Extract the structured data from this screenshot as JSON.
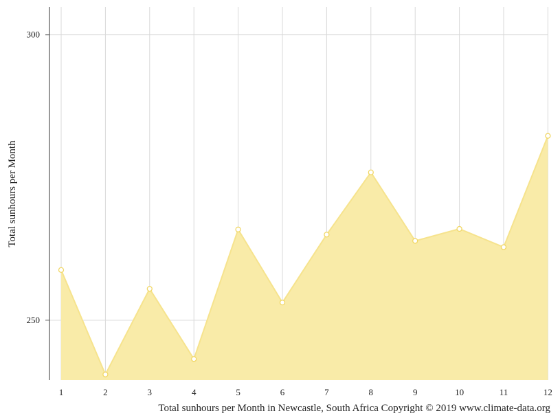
{
  "chart_data": {
    "type": "area",
    "x": [
      1,
      2,
      3,
      4,
      5,
      6,
      7,
      8,
      9,
      10,
      11,
      12
    ],
    "values": [
      258.8,
      240.5,
      255.5,
      243.2,
      265.9,
      253.1,
      265.0,
      275.9,
      263.9,
      266.0,
      262.8,
      282.3
    ],
    "ylabel": "Total sunhours per Month",
    "xlabel": "",
    "ylim": [
      239.5,
      304.9
    ],
    "yticks": [
      250,
      300
    ],
    "caption": "Total sunhours per Month in Newcastle, South Africa Copyright © 2019 www.climate-data.org",
    "grid": true,
    "colors": {
      "fill": "#f9eba8",
      "line": "#f6e38d",
      "marker_fill": "#ffffff",
      "marker_stroke": "#f1d766",
      "grid": "#d9d9d9",
      "axis": "#555555"
    }
  }
}
